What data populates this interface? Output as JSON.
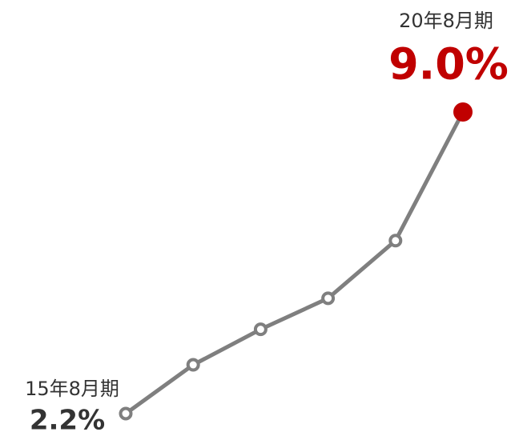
{
  "chart_data": {
    "type": "line",
    "categories": [
      "15年8月期",
      null,
      null,
      null,
      null,
      "20年8月期"
    ],
    "series": [
      {
        "color": "#7f7f7f",
        "highlight_color": "#c00000",
        "values": [
          2.2,
          3.3,
          4.1,
          4.8,
          6.1,
          9.0
        ],
        "value_labels": [
          "2.2%",
          null,
          null,
          null,
          null,
          "9.0%"
        ]
      }
    ],
    "ylim": [
      2.2,
      9.0
    ]
  }
}
